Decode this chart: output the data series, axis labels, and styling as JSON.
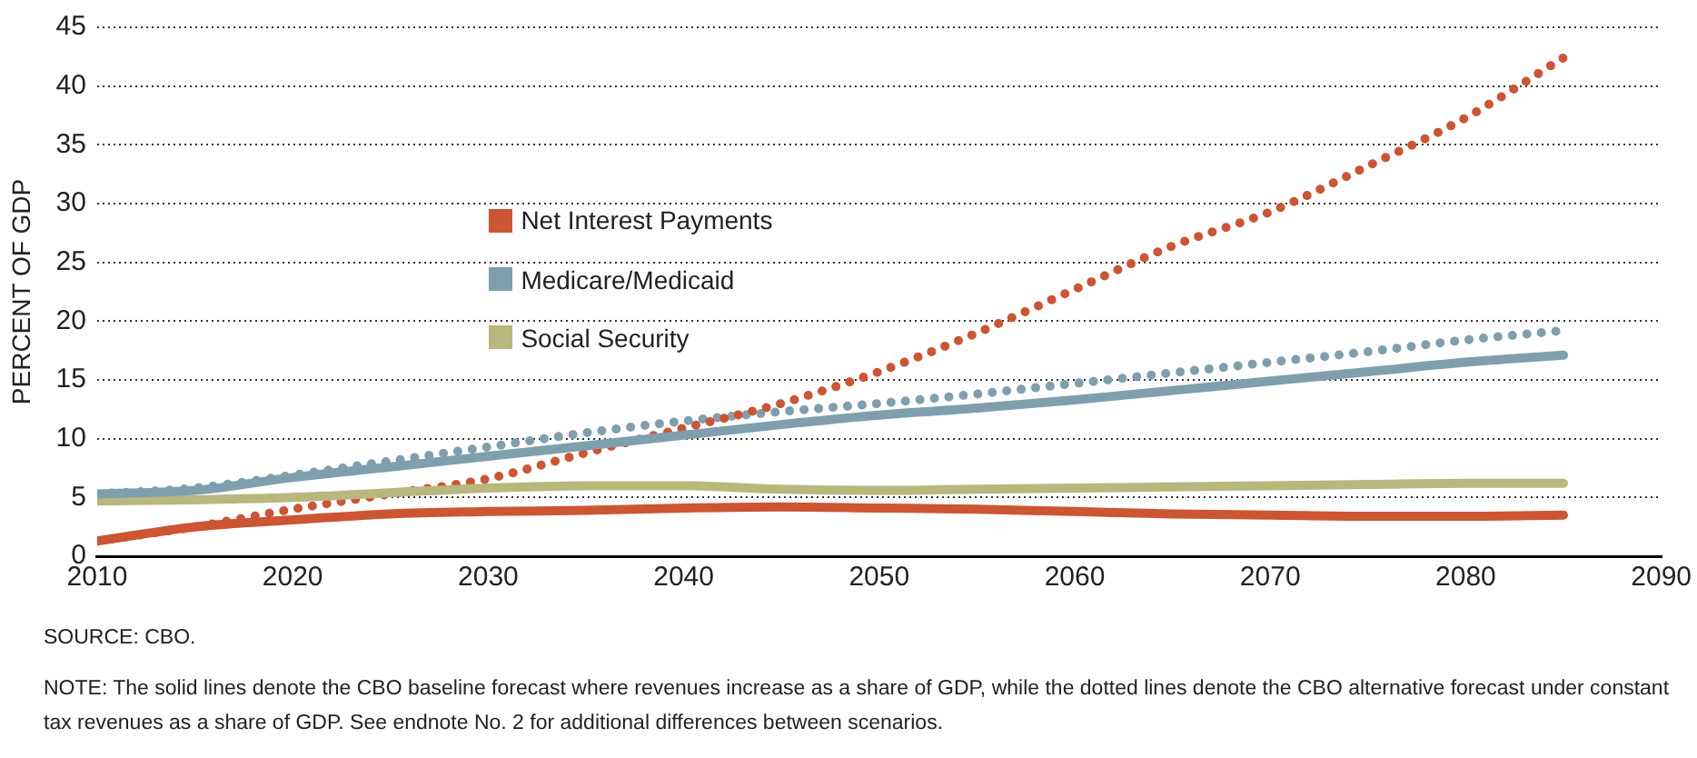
{
  "chart_data": {
    "type": "line",
    "ylabel": "PERCENT OF GDP",
    "x": [
      2010,
      2015,
      2020,
      2025,
      2030,
      2035,
      2040,
      2045,
      2050,
      2055,
      2060,
      2065,
      2070,
      2075,
      2080,
      2085
    ],
    "series": [
      {
        "name": "Net Interest Payments",
        "color": "#cc5533",
        "line_style": "solid",
        "values": [
          1.3,
          2.5,
          3.1,
          3.6,
          3.8,
          3.9,
          4.1,
          4.2,
          4.1,
          4.0,
          3.8,
          3.6,
          3.5,
          3.4,
          3.4,
          3.5
        ]
      },
      {
        "name": "Medicare/Medicaid",
        "color": "#7f9fae",
        "line_style": "solid",
        "values": [
          5.3,
          5.6,
          6.7,
          7.6,
          8.5,
          9.4,
          10.3,
          11.2,
          12.0,
          12.6,
          13.3,
          14.1,
          14.9,
          15.7,
          16.5,
          17.1
        ]
      },
      {
        "name": "Social Security",
        "color": "#b8b77d",
        "line_style": "solid",
        "values": [
          4.7,
          4.8,
          5.0,
          5.4,
          5.8,
          6.0,
          6.0,
          5.7,
          5.6,
          5.7,
          5.8,
          5.9,
          6.0,
          6.1,
          6.2,
          6.2
        ]
      },
      {
        "color": "#cc5533",
        "line_style": "dotted",
        "values": [
          1.3,
          2.5,
          4.0,
          5.3,
          6.6,
          8.8,
          10.9,
          13.0,
          15.7,
          19.0,
          22.7,
          26.4,
          29.3,
          33.2,
          37.3,
          42.4
        ]
      },
      {
        "color": "#7f9fae",
        "line_style": "dotted",
        "values": [
          5.3,
          5.8,
          6.9,
          8.1,
          9.3,
          10.5,
          11.5,
          12.3,
          13.0,
          13.8,
          14.7,
          15.6,
          16.5,
          17.4,
          18.4,
          19.2
        ]
      }
    ],
    "xlim": [
      2010,
      2090
    ],
    "xticks": [
      2010,
      2020,
      2030,
      2040,
      2050,
      2060,
      2070,
      2080,
      2090
    ],
    "ylim": [
      0,
      45
    ],
    "yticks": [
      0,
      5,
      10,
      15,
      20,
      25,
      30,
      35,
      40,
      45
    ],
    "grid": "y",
    "legend": "center left",
    "marker": "none",
    "annotations": [
      "SOURCE: CBO.",
      "NOTE:  The solid lines denote the CBO baseline forecast where revenues increase as a share of GDP, while the dotted lines denote the CBO alternative forecast under constant tax revenues as a share of GDP.  See endnote No. 2 for additional differences between scenarios."
    ]
  }
}
